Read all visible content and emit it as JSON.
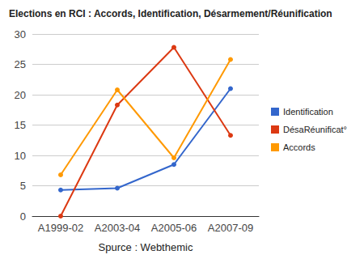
{
  "chart_data": {
    "type": "line",
    "title": "Elections en RCI : Accords, Identification, Désarmement/Réunification",
    "xlabel": "Spurce : Webthemic",
    "categories": [
      "A1999-02",
      "A2003-04",
      "A2005-06",
      "A2007-09"
    ],
    "series": [
      {
        "name": "Identification",
        "color": "#3366cc",
        "values": [
          4.3,
          4.6,
          8.5,
          21.0
        ]
      },
      {
        "name": "DésaRéunificat°",
        "color": "#dc3912",
        "values": [
          0,
          18.3,
          27.8,
          13.3
        ]
      },
      {
        "name": "Accords",
        "color": "#ff9900",
        "values": [
          6.8,
          20.8,
          9.6,
          25.8
        ]
      }
    ],
    "ylim": [
      0,
      30
    ],
    "yticks": [
      0,
      5,
      10,
      15,
      20,
      25,
      30
    ],
    "grid": true,
    "legend": "right",
    "marker": "circle"
  }
}
